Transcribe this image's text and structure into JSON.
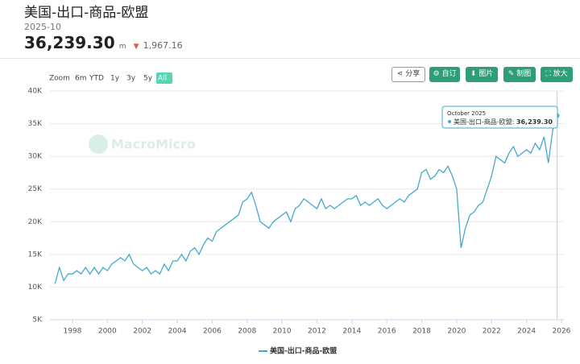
{
  "header": {
    "title": "美国-出口-商品-欧盟",
    "date": "2025-10",
    "value": "36,239.30",
    "unit": "m",
    "change": "1,967.16"
  },
  "toolbar": [
    "分享",
    "自订",
    "图片",
    "制图",
    "放大"
  ],
  "range_buttons": [
    "Zoom",
    "6m",
    "YTD",
    "1y",
    "3y",
    "5y",
    "All"
  ],
  "watermark": "MacroMicro",
  "chart_data": {
    "type": "line",
    "x": [
      1997,
      1997.25,
      1997.5,
      1997.75,
      1998,
      1998.25,
      1998.5,
      1998.75,
      1999,
      1999.25,
      1999.5,
      1999.75,
      2000,
      2000.25,
      2000.5,
      2000.75,
      2001,
      2001.25,
      2001.5,
      2001.75,
      2002,
      2002.25,
      2002.5,
      2002.75,
      2003,
      2003.25,
      2003.5,
      2003.75,
      2004,
      2004.25,
      2004.5,
      2004.75,
      2005,
      2005.25,
      2005.5,
      2005.75,
      2006,
      2006.25,
      2006.5,
      2006.75,
      2007,
      2007.25,
      2007.5,
      2007.75,
      2008,
      2008.25,
      2008.5,
      2008.75,
      2009,
      2009.25,
      2009.5,
      2009.75,
      2010,
      2010.25,
      2010.5,
      2010.75,
      2011,
      2011.25,
      2011.5,
      2011.75,
      2012,
      2012.25,
      2012.5,
      2012.75,
      2013,
      2013.25,
      2013.5,
      2013.75,
      2014,
      2014.25,
      2014.5,
      2014.75,
      2015,
      2015.25,
      2015.5,
      2015.75,
      2016,
      2016.25,
      2016.5,
      2016.75,
      2017,
      2017.25,
      2017.5,
      2017.75,
      2018,
      2018.25,
      2018.5,
      2018.75,
      2019,
      2019.25,
      2019.5,
      2019.75,
      2020,
      2020.25,
      2020.5,
      2020.75,
      2021,
      2021.25,
      2021.5,
      2021.75,
      2022,
      2022.25,
      2022.5,
      2022.75,
      2023,
      2023.25,
      2023.5,
      2023.75,
      2024,
      2024.25,
      2024.5,
      2024.75,
      2025,
      2025.25,
      2025.5,
      2025.75
    ],
    "series": [
      {
        "name": "美国-出口-商品-欧盟",
        "color": "#45a9cc",
        "values": [
          10500,
          13000,
          11000,
          12000,
          12000,
          12500,
          12000,
          13000,
          12000,
          13000,
          12000,
          13000,
          12500,
          13500,
          14000,
          14500,
          14000,
          15000,
          13500,
          13000,
          12500,
          13000,
          12000,
          12500,
          12000,
          13500,
          12500,
          14000,
          14000,
          15000,
          14000,
          15500,
          16000,
          15000,
          16500,
          17500,
          17000,
          18500,
          19000,
          19500,
          20000,
          20500,
          21000,
          23000,
          23500,
          24500,
          22500,
          20000,
          19500,
          19000,
          20000,
          20500,
          21000,
          21500,
          20000,
          22000,
          22500,
          23500,
          23000,
          22500,
          22000,
          23500,
          22000,
          22500,
          22000,
          22500,
          23000,
          23500,
          23500,
          24000,
          22500,
          23000,
          22500,
          23000,
          23500,
          22500,
          22000,
          22500,
          23000,
          23500,
          23000,
          24000,
          24500,
          25000,
          27500,
          28000,
          26500,
          27000,
          28000,
          27500,
          28500,
          27000,
          25000,
          16000,
          19000,
          21000,
          21500,
          22500,
          23000,
          25000,
          27000,
          30000,
          29500,
          29000,
          30500,
          31500,
          30000,
          30500,
          31000,
          30500,
          32000,
          31000,
          33000,
          29000,
          34000,
          36239.3
        ]
      }
    ],
    "xlim": [
      1996.71,
      2026.14
    ],
    "xticks": [
      1998,
      2000,
      2002,
      2004,
      2006,
      2008,
      2010,
      2012,
      2014,
      2016,
      2018,
      2020,
      2022,
      2024,
      2026
    ],
    "ylim": [
      5000,
      40000
    ],
    "yticks": [
      {
        "value": 5000,
        "label": "5K"
      },
      {
        "value": 10000,
        "label": "10K"
      },
      {
        "value": 15000,
        "label": "15K"
      },
      {
        "value": 20000,
        "label": "20K"
      },
      {
        "value": 25000,
        "label": "25K"
      },
      {
        "value": 30000,
        "label": "30K"
      },
      {
        "value": 35000,
        "label": "35K"
      },
      {
        "value": 40000,
        "label": "40K"
      }
    ],
    "grid": true,
    "tooltip": {
      "date": "October 2025",
      "value": "36,239.30"
    }
  }
}
